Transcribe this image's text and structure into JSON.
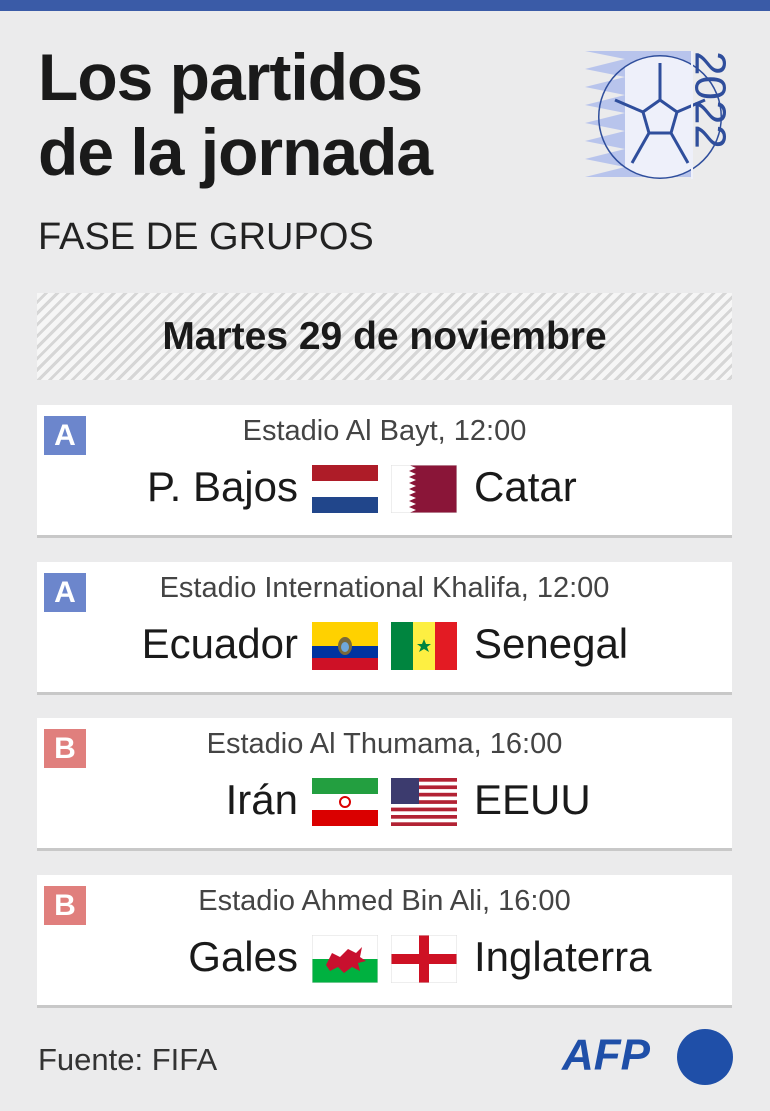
{
  "header": {
    "title_lines": [
      "Los partidos",
      "de la jornada"
    ],
    "logo_year": "2022",
    "subtitle": "FASE DE GRUPOS"
  },
  "date": "Martes 29 de noviembre",
  "matches": [
    {
      "group": "A",
      "venue": "Estadio Al Bayt, 12:00",
      "home": "P. Bajos",
      "away": "Catar"
    },
    {
      "group": "A",
      "venue": "Estadio International Khalifa, 12:00",
      "home": "Ecuador",
      "away": "Senegal"
    },
    {
      "group": "B",
      "venue": "Estadio Al Thumama, 16:00",
      "home": "Irán",
      "away": "EEUU"
    },
    {
      "group": "B",
      "venue": "Estadio Ahmed Bin Ali, 16:00",
      "home": "Gales",
      "away": "Inglaterra"
    }
  ],
  "footer": {
    "source": "Fuente: FIFA",
    "logo": "AFP"
  }
}
